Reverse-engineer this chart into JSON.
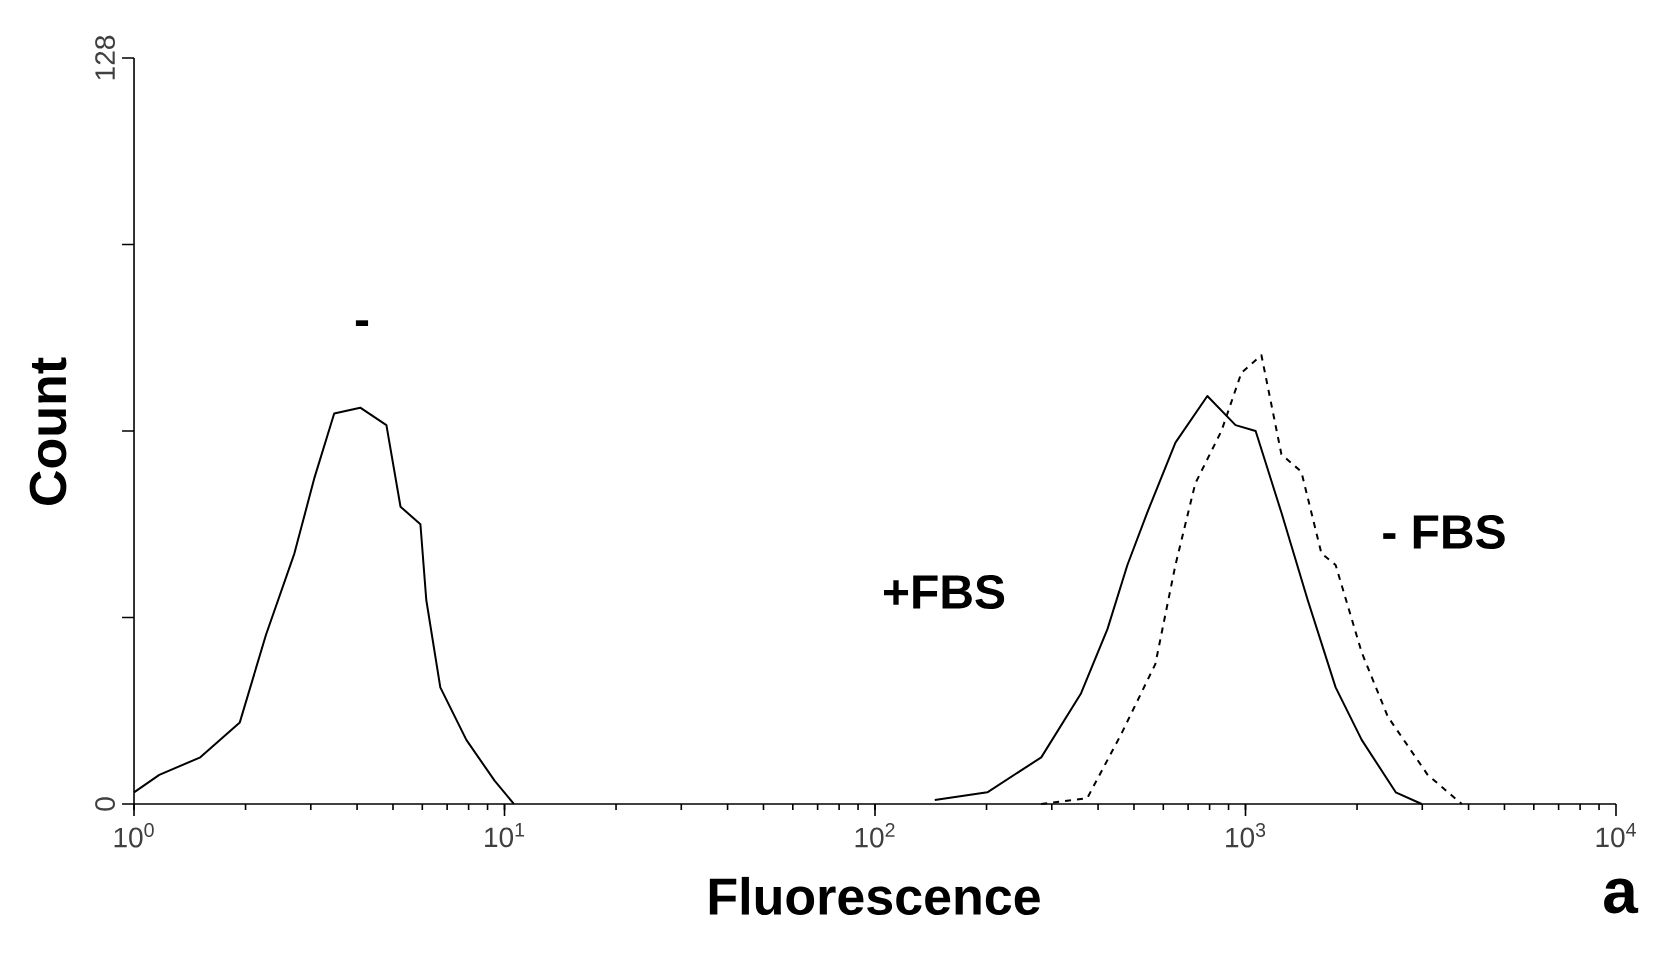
{
  "chart_data": {
    "type": "line",
    "xlabel": "Fluorescence",
    "ylabel": "Count",
    "log": "x",
    "xlim": [
      1,
      10000
    ],
    "ylim": [
      0,
      128
    ],
    "xticks": [
      {
        "value": 1,
        "label": "10$^{0}$"
      },
      {
        "value": 10,
        "label": "10$^{1}$"
      },
      {
        "value": 100,
        "label": "10$^{2}$"
      },
      {
        "value": 1000,
        "label": "10$^{3}$"
      },
      {
        "value": 10000,
        "label": "10$^{4}$"
      }
    ],
    "yticks": [
      0,
      {
        "value": 32,
        "label": null
      },
      {
        "value": 64,
        "label": null
      },
      {
        "value": 96,
        "label": null
      },
      128
    ],
    "grid": false,
    "marker": "none",
    "series": [
      {
        "color": "#000000",
        "line_style": "solid",
        "x": [
          1,
          1.17,
          1.51,
          1.93,
          2.27,
          2.71,
          3.07,
          3.47,
          4.08,
          4.8,
          5.24,
          5.93,
          6.15,
          6.71,
          7.89,
          9.4,
          10.6
        ],
        "values": [
          2,
          5,
          8,
          14,
          29,
          43,
          56,
          67,
          68,
          65,
          51,
          48,
          35,
          20,
          11,
          4,
          0
        ]
      },
      {
        "color": "#000000",
        "line_style": "solid",
        "x": [
          145,
          201,
          281,
          360,
          424,
          480,
          543,
          647,
          789,
          940,
          1065,
          1250,
          1472,
          1751,
          2059,
          2544,
          2990
        ],
        "values": [
          0.7,
          2,
          8,
          19,
          30,
          41,
          50,
          62,
          70,
          65,
          64,
          50,
          35,
          20,
          11,
          2,
          0
        ]
      },
      {
        "color": "#000000",
        "line_style": "dashed",
        "x": [
          281,
          374,
          462,
          571,
          647,
          732,
          861,
          975,
          1104,
          1250,
          1415,
          1603,
          1751,
          2059,
          2421,
          3102,
          3834
        ],
        "values": [
          0,
          1,
          12,
          24,
          41,
          55,
          64,
          74,
          77,
          60,
          57,
          43,
          41,
          26,
          15,
          5,
          0
        ]
      }
    ],
    "annotations": [
      "-",
      "+FBS",
      "- FBS",
      "a"
    ]
  }
}
